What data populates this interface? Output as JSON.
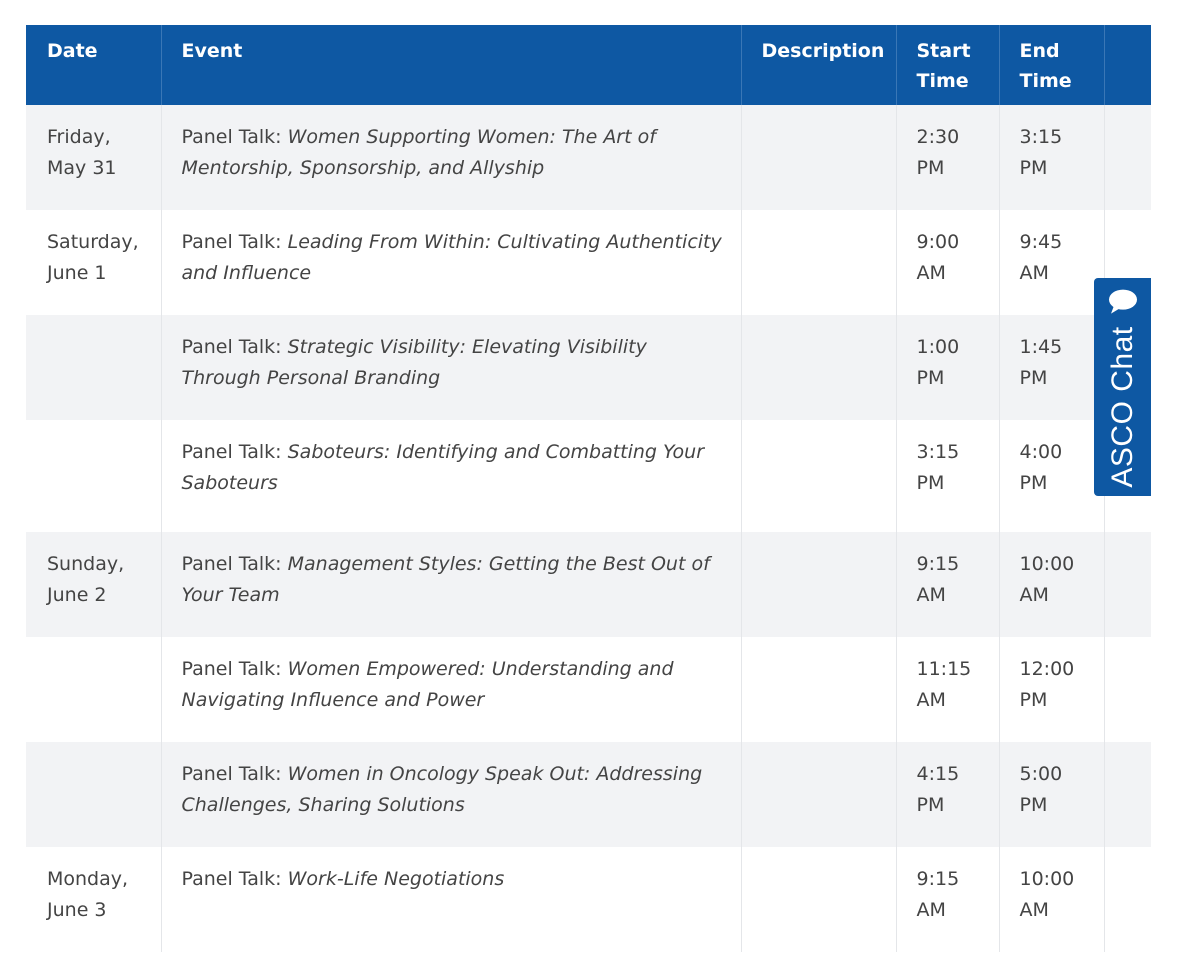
{
  "table": {
    "headers": {
      "date": "Date",
      "event": "Event",
      "description": "Description",
      "start": "Start Time",
      "end": "End Time",
      "extra": ""
    },
    "rows": [
      {
        "date": "Friday,\nMay 31",
        "prefix": "Panel Talk: ",
        "title": "Women Supporting Women: The Art of Mentorship, Sponsorship, and Allyship",
        "description": "",
        "start": "2:30\nPM",
        "end": "3:15\nPM"
      },
      {
        "date": "Saturday,\nJune 1",
        "prefix": "Panel Talk: ",
        "title": "Leading From Within: Cultivating Authenticity and Influence",
        "description": "",
        "start": "9:00\nAM",
        "end": "9:45\nAM"
      },
      {
        "date": "",
        "prefix": "Panel Talk: ",
        "title": "Strategic Visibility: Elevating Visibility Through Personal Branding",
        "description": "",
        "start": "1:00\nPM",
        "end": "1:45\nPM"
      },
      {
        "date": "",
        "prefix": "Panel Talk: ",
        "title": "Saboteurs: Identifying and Combatting Your Saboteurs",
        "description": "",
        "start": "3:15\nPM",
        "end": "4:00\nPM"
      },
      {
        "date": "Sunday,\nJune 2",
        "prefix": "Panel Talk: ",
        "title": "Management Styles: Getting the Best Out of Your Team",
        "description": "",
        "start": "9:15\nAM",
        "end": "10:00\nAM"
      },
      {
        "date": "",
        "prefix": "Panel Talk: ",
        "title": "Women Empowered: Understanding and Navigating Influence and Power",
        "description": "",
        "start": "11:15\nAM",
        "end": "12:00\nPM"
      },
      {
        "date": "",
        "prefix": "Panel Talk: ",
        "title": "Women in Oncology Speak Out: Addressing Challenges, Sharing Solutions",
        "description": "",
        "start": "4:15\nPM",
        "end": "5:00\nPM"
      },
      {
        "date": "Monday,\nJune 3",
        "prefix": "Panel Talk: ",
        "title": "Work-Life Negotiations",
        "description": "",
        "start": "9:15\nAM",
        "end": "10:00\nAM"
      }
    ]
  },
  "chat": {
    "label": "ASCO Chat",
    "icon": "speech-bubble-icon"
  },
  "colors": {
    "header_bg": "#0e58a3",
    "header_text": "#ffffff",
    "row_shade": "#f2f3f5",
    "body_text": "#444444"
  }
}
